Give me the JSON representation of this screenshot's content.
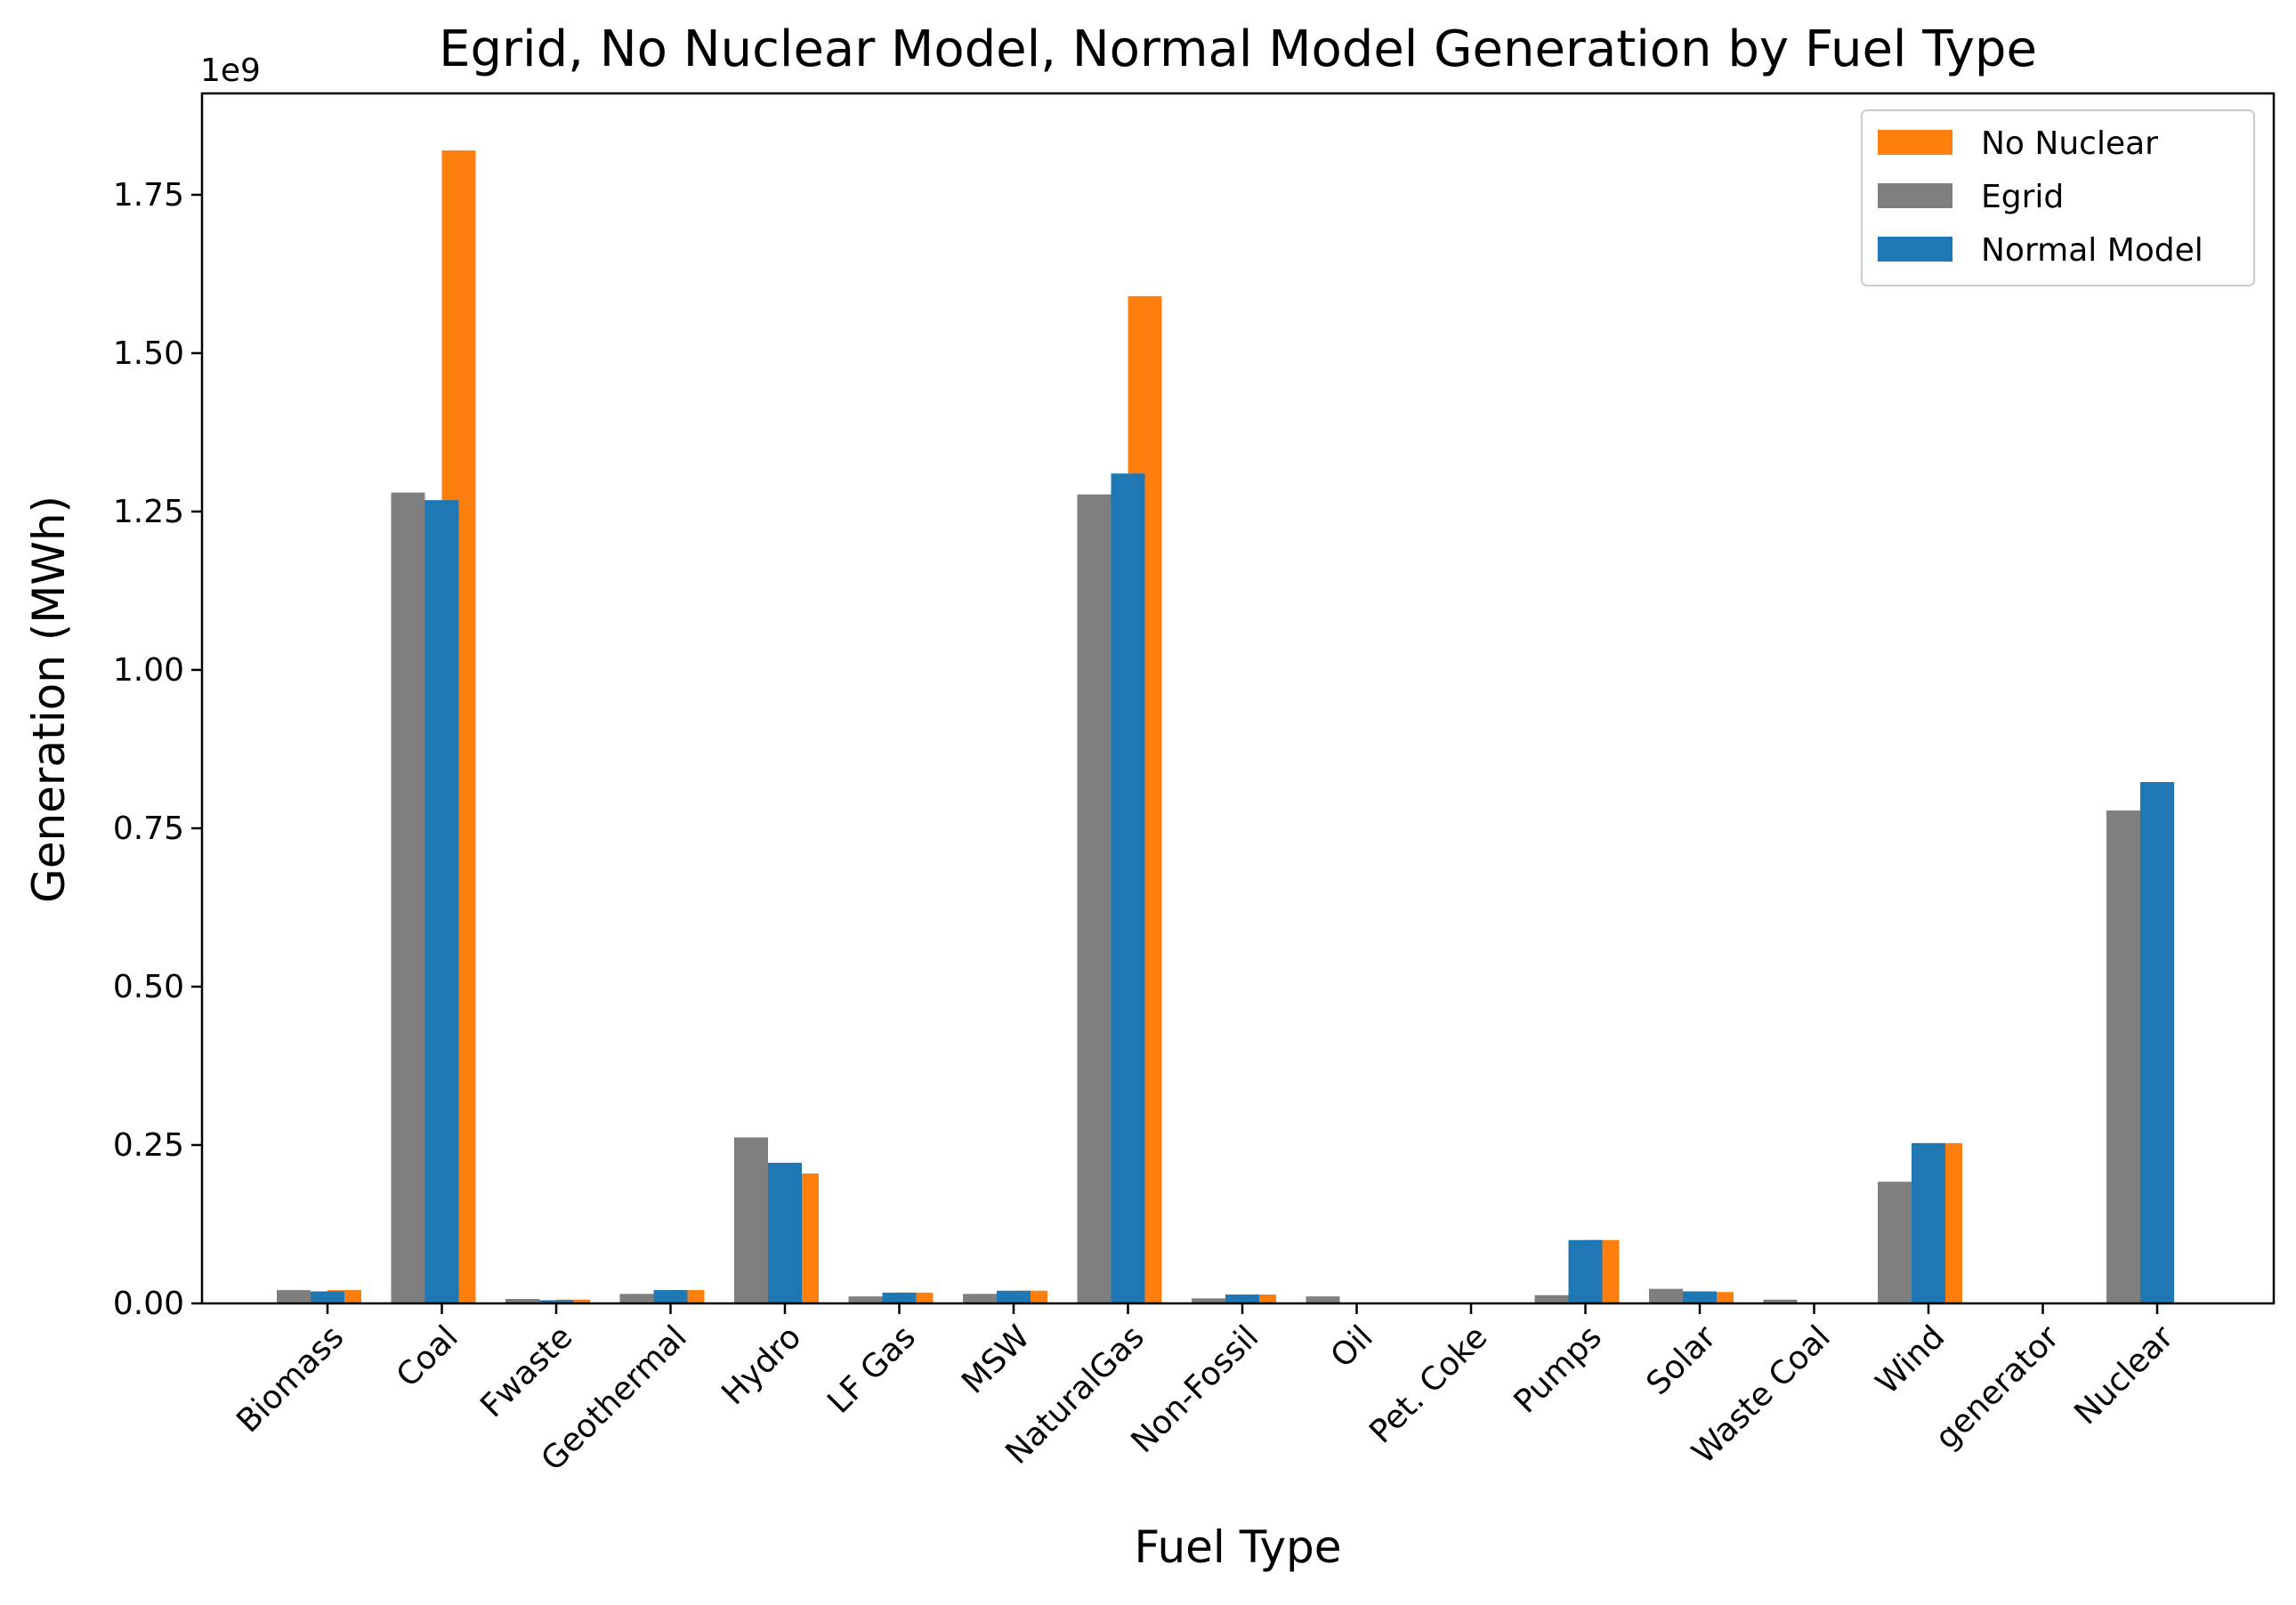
{
  "chart_data": {
    "type": "bar",
    "title": "Egrid, No Nuclear Model, Normal Model Generation by Fuel Type",
    "xlabel": "Fuel Type",
    "ylabel": "Generation (MWh)",
    "y_offset_label": "1e9",
    "y_scale": 1000000000,
    "ylim": [
      0,
      1.91
    ],
    "yticks": [
      0.0,
      0.25,
      0.5,
      0.75,
      1.0,
      1.25,
      1.5,
      1.75
    ],
    "ytick_labels": [
      "0.00",
      "0.25",
      "0.50",
      "0.75",
      "1.00",
      "1.25",
      "1.50",
      "1.75"
    ],
    "grid": false,
    "legend_position": "top-right",
    "categories": [
      "Biomass",
      "Coal",
      "Fwaste",
      "Geothermal",
      "Hydro",
      "LF Gas",
      "MSW",
      "NaturalGas",
      "Non-Fossil",
      "Oil",
      "Pet. Coke",
      "Pumps",
      "Solar",
      "Waste Coal",
      "Wind",
      "generator",
      "Nuclear"
    ],
    "series": [
      {
        "name": "No Nuclear",
        "color": "#ff7f0e",
        "values": [
          0.021,
          1.82,
          0.006,
          0.021,
          0.205,
          0.017,
          0.02,
          1.59,
          0.014,
          0.0,
          0.0,
          0.1,
          0.018,
          0.0,
          0.253,
          0.0,
          0.0
        ]
      },
      {
        "name": "Egrid",
        "color": "#7f7f7f",
        "values": [
          0.021,
          1.28,
          0.007,
          0.015,
          0.262,
          0.011,
          0.015,
          1.277,
          0.008,
          0.011,
          0.001,
          0.013,
          0.023,
          0.006,
          0.192,
          0.0,
          0.778
        ]
      },
      {
        "name": "Normal Model",
        "color": "#1f77b4",
        "values": [
          0.019,
          1.268,
          0.005,
          0.021,
          0.222,
          0.017,
          0.02,
          1.31,
          0.014,
          0.0,
          0.0,
          0.1,
          0.019,
          0.0,
          0.253,
          0.0,
          0.823
        ]
      }
    ]
  }
}
